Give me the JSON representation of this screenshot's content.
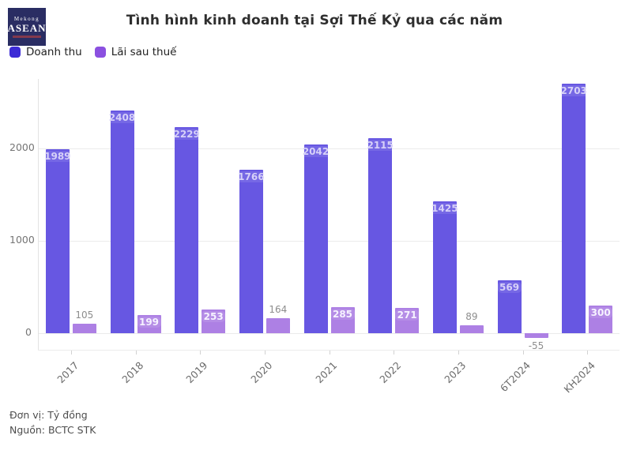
{
  "logo": {
    "line1": "Mekong",
    "line2": "ASEAN",
    "bg_color": "#2a2d63"
  },
  "header": {
    "title": "Tình hình kinh doanh tại Sợi Thế Kỷ qua các năm"
  },
  "chart_data": {
    "type": "bar",
    "categories": [
      "2017",
      "2018",
      "2019",
      "2020",
      "2021",
      "2022",
      "2023",
      "6T2024",
      "KH2024"
    ],
    "series": [
      {
        "name": "Doanh thu",
        "legend_color": "#3c2bd6",
        "bar_color": "#6757e2",
        "label_color": "#d7d1f8",
        "values": [
          1989,
          2408,
          2229,
          1766,
          2042,
          2115,
          1425,
          569,
          2703
        ]
      },
      {
        "name": "Lãi sau thuế",
        "legend_color": "#8b50e0",
        "bar_color": "#ad80e4",
        "label_color": "#f6f2ff",
        "values": [
          105,
          199,
          253,
          164,
          285,
          271,
          89,
          -55,
          300
        ]
      }
    ],
    "yticks": [
      0,
      1000,
      2000
    ],
    "ylim": [
      -180,
      2750
    ],
    "grid": true,
    "legend_position": "top-left",
    "xlabel": "",
    "ylabel": ""
  },
  "footer": {
    "unit_label": "Đơn vị: Tỷ đồng",
    "source_label": "Nguồn: BCTC STK"
  }
}
